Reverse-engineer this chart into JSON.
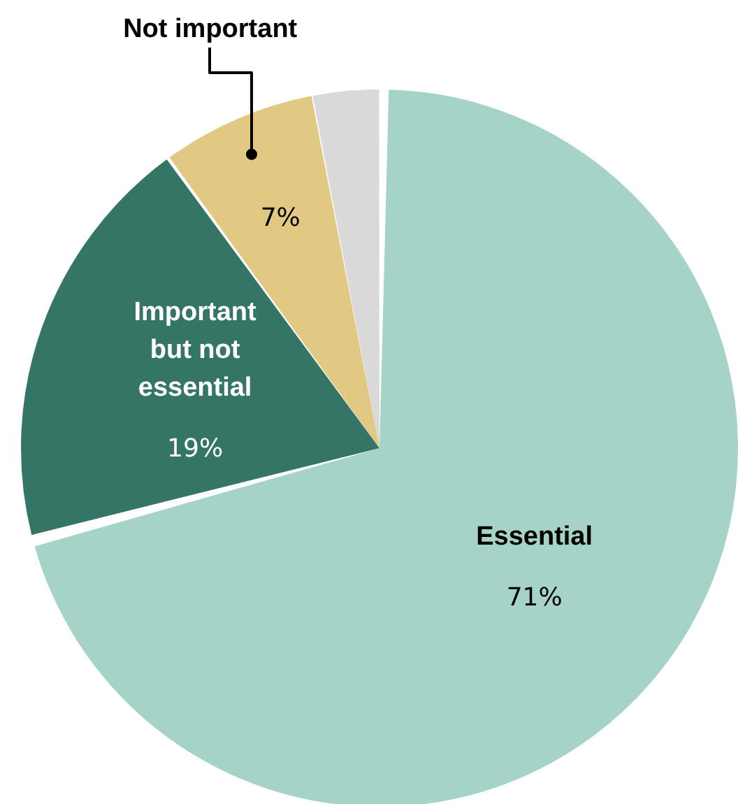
{
  "chart_data": {
    "type": "pie",
    "categories": [
      "Essential",
      "Important but not essential",
      "Not important",
      null
    ],
    "values": [
      71,
      19,
      7,
      3
    ],
    "colors": [
      "#a5d3c8",
      "#357565",
      "#e2c983",
      "#d9d9d9"
    ],
    "value_labels": [
      "71%",
      "19%",
      "7%",
      null
    ],
    "legend": false
  }
}
